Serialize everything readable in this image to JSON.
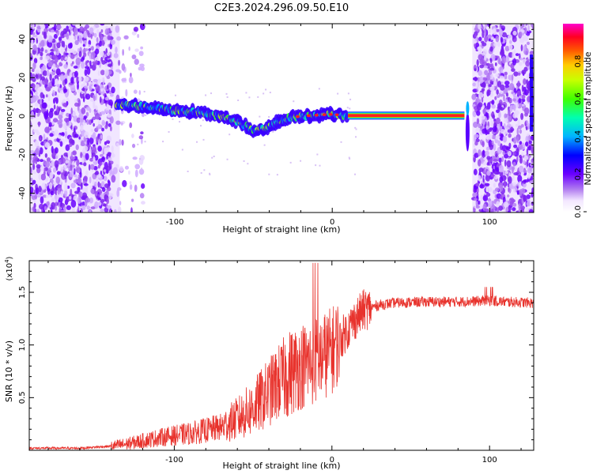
{
  "figure": {
    "title": "C2E3.2024.296.09.50.E10"
  },
  "chart_data": [
    {
      "type": "heatmap",
      "xlabel": "Height of straight line (km)",
      "ylabel": "Frequency (Hz)",
      "xlim": [
        -192,
        128
      ],
      "ylim": [
        -50,
        48
      ],
      "x_ticks": [
        -100,
        0,
        100
      ],
      "x_tick_labels": [
        "-100",
        "0",
        "100"
      ],
      "y_ticks": [
        -40,
        -20,
        0,
        20,
        40
      ],
      "y_tick_labels": [
        "-40",
        "-20",
        "0",
        "20",
        "40"
      ],
      "grid": false,
      "colorbar": {
        "label": "Normalized spectral amplitude",
        "range": [
          0,
          1
        ],
        "ticks": [
          0.0,
          0.2,
          0.4,
          0.6,
          0.8
        ],
        "tick_labels": [
          "0.0",
          "0.2",
          "0.4",
          "0.6",
          "0.8"
        ]
      },
      "trace": {
        "x": [
          -137,
          -120,
          -100,
          -85,
          -70,
          -60,
          -50,
          -42,
          -35,
          -28,
          -20,
          -10,
          0,
          10,
          85
        ],
        "y": [
          6,
          5,
          3,
          2,
          0,
          -3,
          -7,
          -6,
          -3,
          -1,
          0,
          0.5,
          1,
          0,
          0
        ]
      }
    },
    {
      "type": "line",
      "xlabel": "Height of straight line (km)",
      "ylabel": "SNR (10 * v/v)",
      "y_multiplier": "(x10",
      "y_multiplier_exp": "4",
      "xlim": [
        -192,
        128
      ],
      "ylim": [
        0,
        1.8
      ],
      "x_ticks": [
        -100,
        0,
        100
      ],
      "x_tick_labels": [
        "-100",
        "0",
        "100"
      ],
      "y_ticks": [
        0.5,
        1.0,
        1.5
      ],
      "y_tick_labels": [
        "0.5",
        "1.0",
        "1.5"
      ],
      "grid": false,
      "line_color": "#e8332d",
      "series": [
        {
          "x": [
            -192,
            -160,
            -140,
            -130,
            -120,
            -110,
            -100,
            -90,
            -80,
            -70,
            -60,
            -50,
            -40,
            -30,
            -25,
            -20,
            -15,
            -10,
            -5,
            0,
            5,
            10,
            15,
            20,
            30,
            40,
            60,
            80,
            100,
            110,
            128
          ],
          "values": [
            0.02,
            0.02,
            0.04,
            0.06,
            0.09,
            0.12,
            0.14,
            0.16,
            0.19,
            0.22,
            0.3,
            0.4,
            0.55,
            0.7,
            0.75,
            0.8,
            0.82,
            0.85,
            0.9,
            0.95,
            1.05,
            1.15,
            1.25,
            1.33,
            1.38,
            1.4,
            1.41,
            1.41,
            1.42,
            1.41,
            1.4
          ]
        }
      ]
    }
  ]
}
